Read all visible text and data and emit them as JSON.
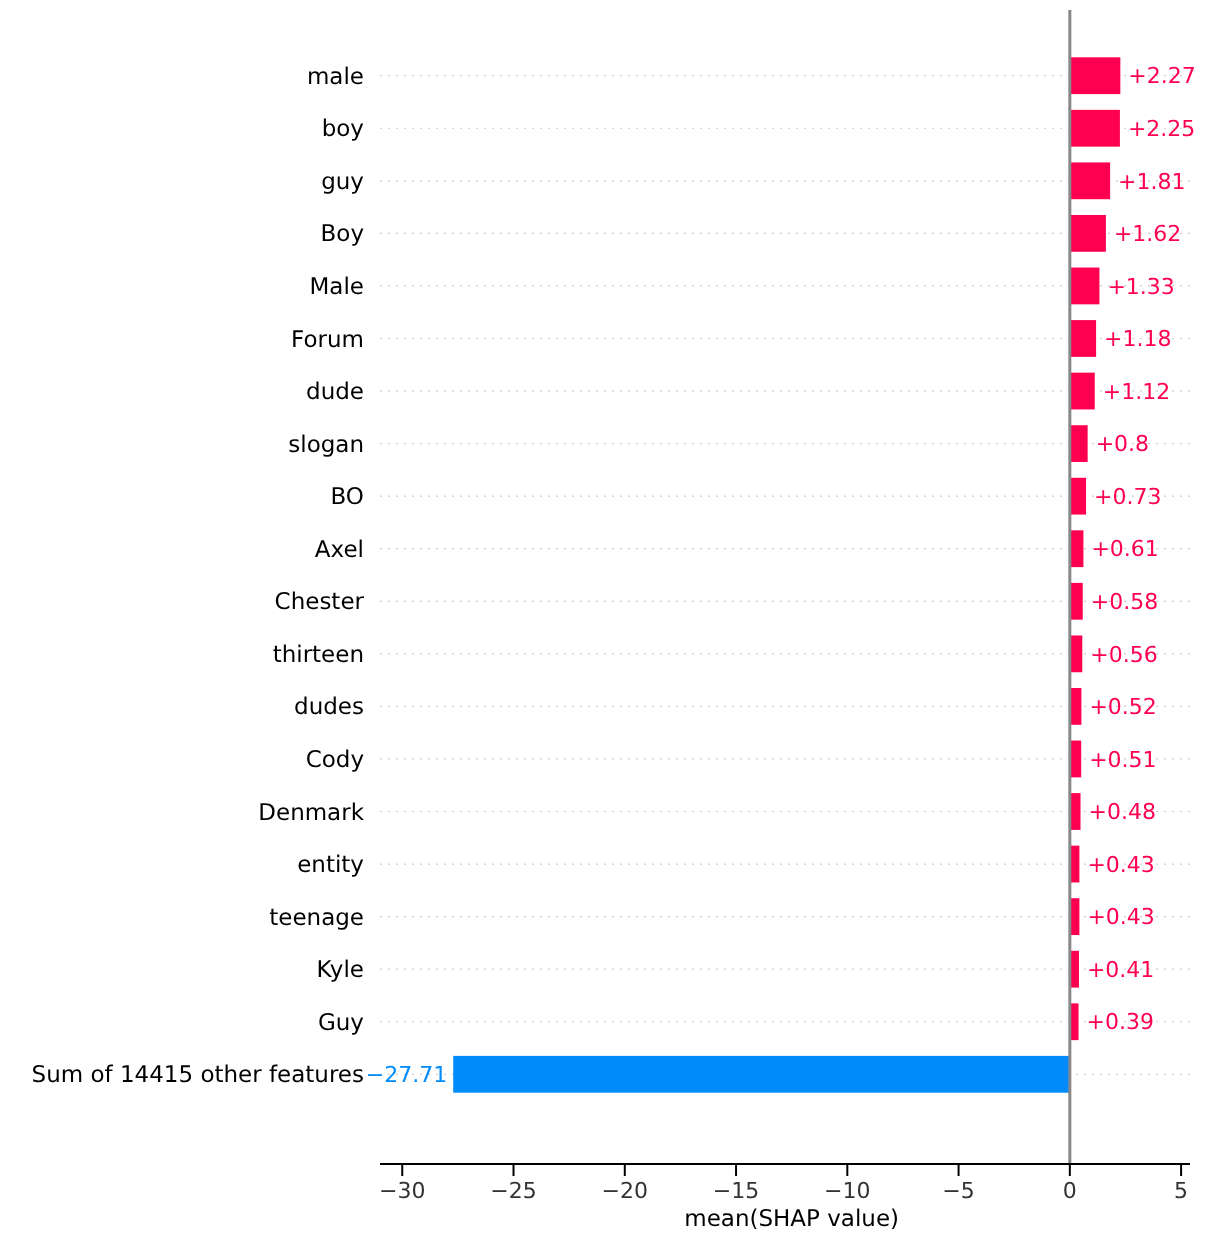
{
  "chart_data": {
    "type": "bar",
    "orientation": "horizontal",
    "xlabel": "mean(SHAP value)",
    "categories": [
      "male",
      "boy",
      "guy",
      "Boy",
      "Male",
      "Forum",
      "dude",
      "slogan",
      "BO",
      "Axel",
      "Chester",
      "thirteen",
      "dudes",
      "Cody",
      "Denmark",
      "entity",
      "teenage",
      "Kyle",
      "Guy",
      "Sum of 14415 other features"
    ],
    "values": [
      2.27,
      2.25,
      1.81,
      1.62,
      1.33,
      1.18,
      1.12,
      0.8,
      0.73,
      0.61,
      0.58,
      0.56,
      0.52,
      0.51,
      0.48,
      0.43,
      0.43,
      0.41,
      0.39,
      -27.71
    ],
    "value_labels": [
      "+2.27",
      "+2.25",
      "+1.81",
      "+1.62",
      "+1.33",
      "+1.18",
      "+1.12",
      "+0.8",
      "+0.73",
      "+0.61",
      "+0.58",
      "+0.56",
      "+0.52",
      "+0.51",
      "+0.48",
      "+0.43",
      "+0.43",
      "+0.41",
      "+0.39",
      "−27.71"
    ],
    "colors": [
      "#ff0051",
      "#ff0051",
      "#ff0051",
      "#ff0051",
      "#ff0051",
      "#ff0051",
      "#ff0051",
      "#ff0051",
      "#ff0051",
      "#ff0051",
      "#ff0051",
      "#ff0051",
      "#ff0051",
      "#ff0051",
      "#ff0051",
      "#ff0051",
      "#ff0051",
      "#ff0051",
      "#ff0051",
      "#008bfb"
    ],
    "xlim": [
      -31,
      5.4
    ],
    "xticks": [
      {
        "value": -30,
        "label": "−30"
      },
      {
        "value": -25,
        "label": "−25"
      },
      {
        "value": -20,
        "label": "−20"
      },
      {
        "value": -15,
        "label": "−15"
      },
      {
        "value": -10,
        "label": "−10"
      },
      {
        "value": -5,
        "label": "−5"
      },
      0,
      5
    ],
    "grid": "y",
    "ref_lines": [
      {
        "axis": "x",
        "value": 0,
        "color": "#888888"
      }
    ]
  }
}
